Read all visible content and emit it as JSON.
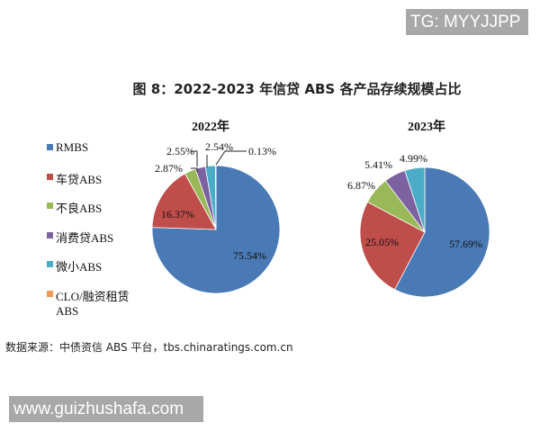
{
  "watermarks": {
    "top": "TG: MYYJJPP",
    "bottom": "www.guizhushafa.com"
  },
  "title": "图 8：2022-2023 年信贷 ABS 各产品存续规模占比",
  "legend": [
    {
      "label": "RMBS",
      "color": "#4a7ab5"
    },
    {
      "label": "车贷ABS",
      "color": "#bf4d4a"
    },
    {
      "label": "不良ABS",
      "color": "#99b858"
    },
    {
      "label": "消费贷ABS",
      "color": "#7c62a1"
    },
    {
      "label": "微小ABS",
      "color": "#4aacc6"
    },
    {
      "label": "CLO/融资租赁",
      "label2": "ABS",
      "color": "#f09a55"
    }
  ],
  "source": "数据来源：中债资信 ABS 平台，tbs.chinaratings.com.cn",
  "chart_data": [
    {
      "type": "pie",
      "title": "2022年",
      "categories": [
        "RMBS",
        "车贷ABS",
        "不良ABS",
        "消费贷ABS",
        "微小ABS",
        "CLO/融资租赁ABS"
      ],
      "values": [
        75.54,
        16.37,
        2.87,
        2.55,
        2.54,
        0.13
      ],
      "labels": [
        "75.54%",
        "16.37%",
        "2.87%",
        "2.55%",
        "2.54%",
        "0.13%"
      ]
    },
    {
      "type": "pie",
      "title": "2023年",
      "categories": [
        "RMBS",
        "车贷ABS",
        "不良ABS",
        "消费贷ABS",
        "微小ABS",
        "CLO/融资租赁ABS"
      ],
      "values": [
        57.69,
        25.05,
        6.87,
        5.41,
        4.99,
        0
      ],
      "labels": [
        "57.69%",
        "25.05%",
        "6.87%",
        "5.41%",
        "4.99%",
        ""
      ]
    }
  ]
}
